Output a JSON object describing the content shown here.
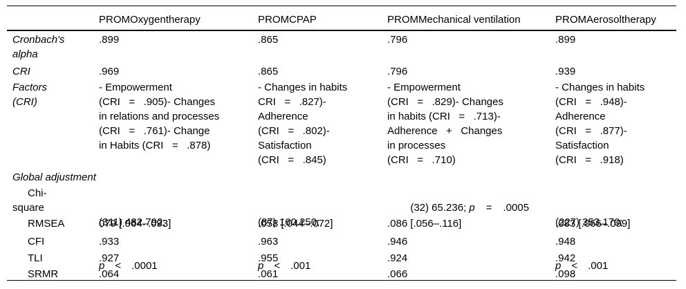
{
  "colors": {
    "text": "#000000",
    "border": "#000000",
    "background": "#ffffff"
  },
  "table": {
    "columns": [
      "",
      "PROMOxygentherapy",
      "PROMCPAP",
      "PROMMechanical ventilation",
      "PROMAerosoltherapy"
    ],
    "rows": {
      "cronbach": {
        "label": "Cronbach's\nalpha",
        "values": [
          ".899",
          ".865",
          ".796",
          ".899"
        ]
      },
      "cri": {
        "label": "CRI",
        "values": [
          ".969",
          ".865",
          ".796",
          ".939"
        ]
      },
      "factors": {
        "label": "Factors\n(CRI)",
        "values": [
          "- Empowerment\n(CRI   =   .905)- Changes\nin relations and processes\n(CRI   =   .761)- Change\nin Habits (CRI   =   .878)",
          "- Changes in habits\nCRI   =   .827)-\nAdherence\n(CRI   =   .802)-\nSatisfaction\n(CRI   =   .845)",
          "- Empowerment\n(CRI   =   .829)- Changes\nin habits (CRI   =   .713)-\nAdherence   +   Changes\nin processes\n(CRI   =   .710)",
          "- Changes in habits\n(CRI   =   .948)-\nAdherence\n(CRI   =   .877)-\nSatisfaction\n(CRI   =   .918)"
        ]
      },
      "global_adjustment": {
        "label": "Global adjustment"
      },
      "chi_square": {
        "label": "Chi-\nsquare",
        "cells": [
          {
            "line1": "(311) 482.792;",
            "p": "p",
            "op": "<",
            "value": ".0001"
          },
          {
            "line1": "(87) 160.250;",
            "p": "p",
            "op": "<",
            "value": ".001"
          },
          {
            "prefix": "(32) 65.236; ",
            "p": "p",
            "op": "=",
            "value": ".0005"
          },
          {
            "line1": "(227) 353.170;",
            "p": "p",
            "op": "<",
            "value": ".001"
          }
        ]
      },
      "rmsea": {
        "label": "RMSEA",
        "values": [
          "079 [.064–.093]",
          ".058 [.044–.072]",
          ".086 [.056–.116]",
          ".083 [.066–.099]"
        ]
      },
      "cfi": {
        "label": "CFI",
        "values": [
          ".933",
          ".963",
          ".946",
          ".948"
        ]
      },
      "tli": {
        "label": "TLI",
        "values": [
          ".927",
          ".955",
          ".924",
          ".942"
        ]
      },
      "srmr": {
        "label": "SRMR",
        "values": [
          ".064",
          ".061",
          ".066",
          ".098"
        ]
      }
    }
  }
}
